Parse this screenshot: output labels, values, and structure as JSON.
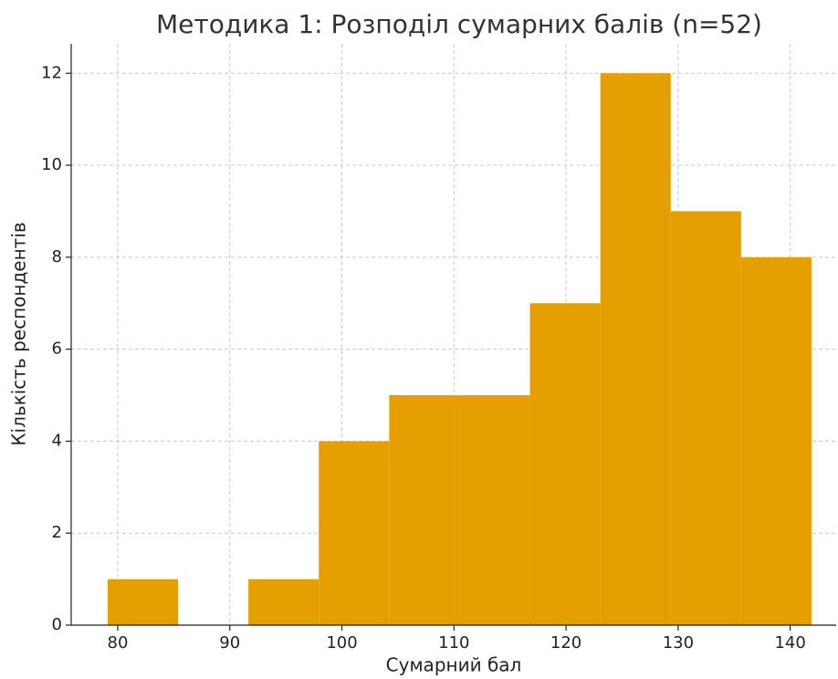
{
  "chart_data": {
    "type": "histogram",
    "title": "Методика 1: Розподіл сумарних балів (n=52)",
    "x_label": "Сумарний бал",
    "y_label": "Кількість респондентів",
    "bins": [
      79.1,
      85.38,
      91.66,
      97.94,
      104.22,
      110.5,
      116.78,
      123.06,
      129.34,
      135.62,
      141.9
    ],
    "values": [
      1,
      0,
      1,
      4,
      5,
      5,
      7,
      12,
      9,
      8
    ],
    "color": "#e69f00",
    "xlim": [
      75.85,
      144.1
    ],
    "xticks": [
      80,
      90,
      100,
      110,
      120,
      130,
      140
    ],
    "ylim": [
      0,
      12.64
    ],
    "yticks": [
      0,
      2,
      4,
      6,
      8,
      10,
      12
    ],
    "grid": true
  }
}
